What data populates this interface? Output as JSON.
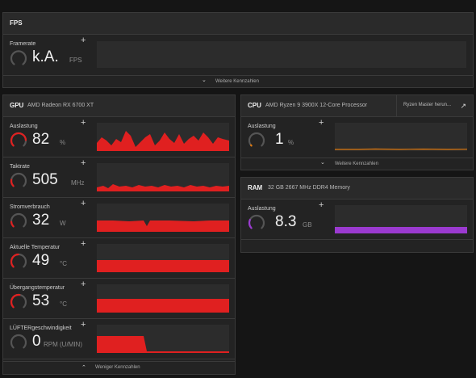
{
  "fps": {
    "title": "FPS",
    "framerate_label": "Framerate",
    "framerate_value": "k.A.",
    "framerate_unit": "FPS",
    "more_label": "Weitere Kennzahlen"
  },
  "gpu": {
    "title": "GPU",
    "name": "AMD Radeon RX 6700 XT",
    "less_label": "Weniger Kennzahlen",
    "metrics": [
      {
        "label": "Auslastung",
        "value": "82",
        "unit": "%",
        "level": 0.82
      },
      {
        "label": "Taktrate",
        "value": "505",
        "unit": "MHz",
        "level": 0.2
      },
      {
        "label": "Stromverbrauch",
        "value": "32",
        "unit": "W",
        "level": 0.15
      },
      {
        "label": "Aktuelle Temperatur",
        "value": "49",
        "unit": "°C",
        "level": 0.49
      },
      {
        "label": "Übergangstemperatur",
        "value": "53",
        "unit": "°C",
        "level": 0.53
      },
      {
        "label": "LÜFTERgeschwindigkeit",
        "value": "0",
        "unit": "RPM (U/MIN)",
        "level": 0
      }
    ]
  },
  "cpu": {
    "title": "CPU",
    "name": "AMD Ryzen 9 3900X 12-Core Processor",
    "tab_label": "Ryzen Master herun...",
    "metric_label": "Auslastung",
    "metric_value": "1",
    "metric_unit": "%",
    "metric_level": 0.01,
    "more_label": "Weitere Kennzahlen"
  },
  "ram": {
    "title": "RAM",
    "name": "32 GB 2667 MHz DDR4 Memory",
    "metric_label": "Auslastung",
    "metric_value": "8.3",
    "metric_unit": "GB",
    "metric_level": 0.26
  },
  "colors": {
    "gpu_accent": "#e02020",
    "cpu_accent": "#e07a10",
    "ram_accent": "#9b3ad0",
    "gauge_track": "#555555"
  },
  "icons": {
    "plus": "+",
    "chevron_down": "⌄",
    "chevron_up": "⌃",
    "external": "↗"
  }
}
